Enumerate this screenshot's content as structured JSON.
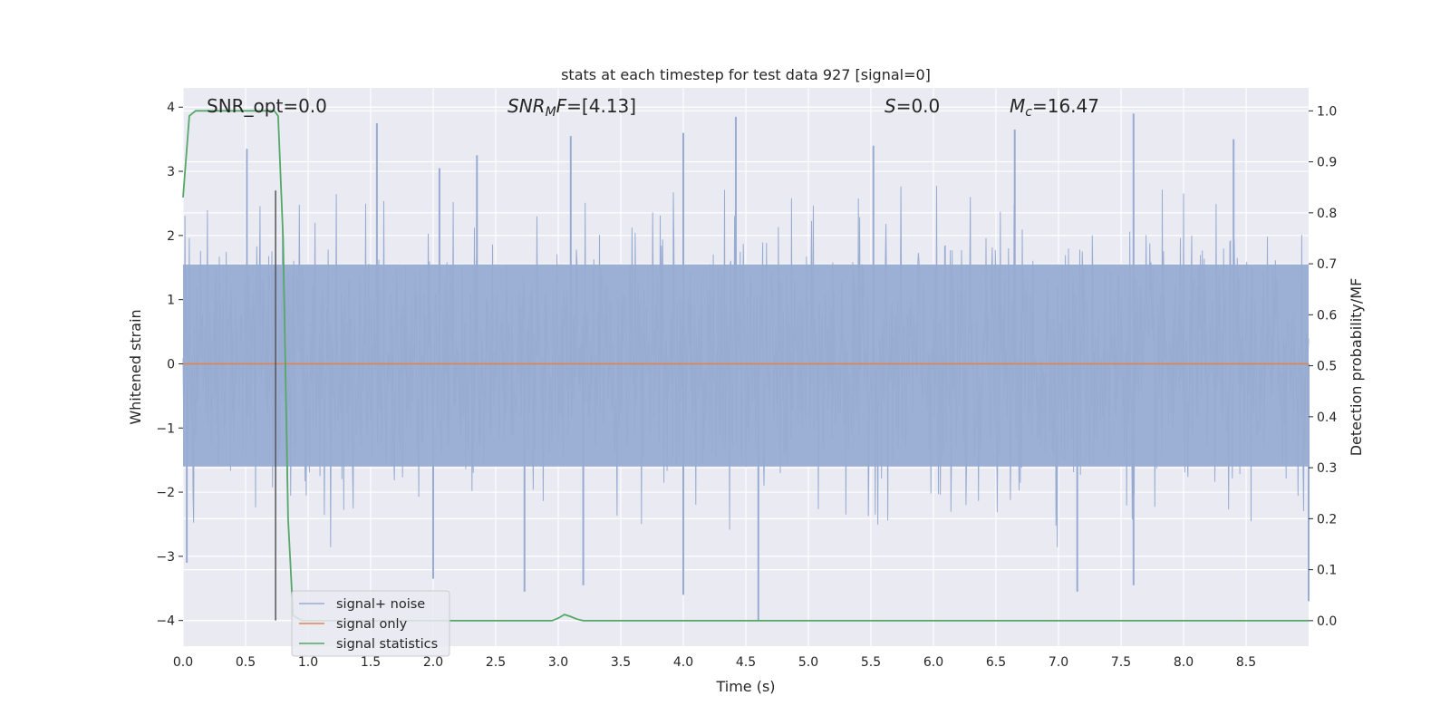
{
  "chart_data": {
    "type": "line",
    "title": "stats at each timestep for test data 927 [signal=0]",
    "xlabel": "Time (s)",
    "ylabel": "Whitened strain",
    "y2label": "Detection probability/MF",
    "xlim": [
      0.0,
      9.0
    ],
    "ylim": [
      -4.4,
      4.3
    ],
    "y2lim": [
      -0.05,
      1.045
    ],
    "xticks": [
      "0.0",
      "0.5",
      "1.0",
      "1.5",
      "2.0",
      "2.5",
      "3.0",
      "3.5",
      "4.0",
      "4.5",
      "5.0",
      "5.5",
      "6.0",
      "6.5",
      "7.0",
      "7.5",
      "8.0",
      "8.5"
    ],
    "yticks": [
      "−4",
      "−3",
      "−2",
      "−1",
      "0",
      "1",
      "2",
      "3",
      "4"
    ],
    "y2ticks": [
      "0.0",
      "0.1",
      "0.2",
      "0.3",
      "0.4",
      "0.5",
      "0.6",
      "0.7",
      "0.8",
      "0.9",
      "1.0"
    ],
    "grid": true,
    "legend_position": "lower-left",
    "colors": {
      "background": "#eaeaf2",
      "grid": "#ffffff",
      "noise": "#98acd2",
      "signal": "#dd8452",
      "statistics": "#55a868",
      "marker": "#555555"
    },
    "annotations": [
      {
        "id": "snr-opt",
        "text": "SNR_opt=0.0"
      },
      {
        "id": "snr-mf",
        "text": "=[4.13]",
        "italic_prefix": "SNR",
        "sub": "M",
        "italic_suffix": "F"
      },
      {
        "id": "s-stat",
        "text": "=0.0",
        "italic_prefix": "S"
      },
      {
        "id": "chirp-mass",
        "text": "=16.47",
        "italic_prefix": "M",
        "sub": "c"
      }
    ],
    "legend": [
      {
        "id": "noise",
        "label": "signal+ noise"
      },
      {
        "id": "signal",
        "label": "signal only"
      },
      {
        "id": "statistics",
        "label": "signal statistics"
      }
    ],
    "series": [
      {
        "name": "signal+ noise",
        "axis": "left",
        "kind": "noise_band",
        "x_range": [
          0.0,
          9.0
        ],
        "core_band": [
          -1.6,
          1.55
        ],
        "typical_peaks": [
          2.8,
          -3.0
        ],
        "notable_peaks": [
          {
            "x": 0.51,
            "y": 3.35
          },
          {
            "x": 1.55,
            "y": 3.75
          },
          {
            "x": 2.05,
            "y": 3.05
          },
          {
            "x": 2.35,
            "y": 3.25
          },
          {
            "x": 3.1,
            "y": 3.55
          },
          {
            "x": 4.0,
            "y": 3.6
          },
          {
            "x": 4.42,
            "y": 3.85
          },
          {
            "x": 5.52,
            "y": 3.4
          },
          {
            "x": 6.65,
            "y": 3.65
          },
          {
            "x": 7.6,
            "y": 3.9
          },
          {
            "x": 8.4,
            "y": 3.5
          },
          {
            "x": 2.0,
            "y": -3.35
          },
          {
            "x": 2.73,
            "y": -3.55
          },
          {
            "x": 3.2,
            "y": -3.45
          },
          {
            "x": 4.0,
            "y": -3.6
          },
          {
            "x": 4.6,
            "y": -4.0
          },
          {
            "x": 7.15,
            "y": -3.55
          },
          {
            "x": 7.6,
            "y": -3.45
          },
          {
            "x": 0.03,
            "y": -3.1
          },
          {
            "x": 9.0,
            "y": -3.7
          }
        ]
      },
      {
        "name": "signal only",
        "axis": "left",
        "x": [
          0.0,
          9.0
        ],
        "y": [
          0.0,
          0.0
        ]
      },
      {
        "name": "signal statistics",
        "axis": "right",
        "x": [
          0.0,
          0.05,
          0.1,
          0.2,
          0.3,
          0.4,
          0.5,
          0.6,
          0.7,
          0.73,
          0.76,
          0.8,
          0.84,
          0.88,
          0.95,
          1.5,
          2.0,
          2.5,
          2.95,
          3.0,
          3.05,
          3.1,
          3.15,
          3.2,
          3.3,
          4.0,
          5.0,
          6.0,
          7.0,
          8.0,
          9.0
        ],
        "y": [
          0.83,
          0.99,
          1.0,
          1.0,
          1.0,
          1.0,
          1.0,
          1.0,
          1.0,
          1.0,
          0.99,
          0.75,
          0.2,
          0.01,
          0.0,
          0.0,
          0.0,
          0.0,
          0.0,
          0.005,
          0.012,
          0.008,
          0.003,
          0.0,
          0.0,
          0.0,
          0.0,
          0.0,
          0.0,
          0.0,
          0.0
        ]
      },
      {
        "name": "marker",
        "axis": "left",
        "kind": "vertical_line",
        "x": 0.74,
        "y": [
          -4.0,
          2.7
        ]
      }
    ]
  }
}
